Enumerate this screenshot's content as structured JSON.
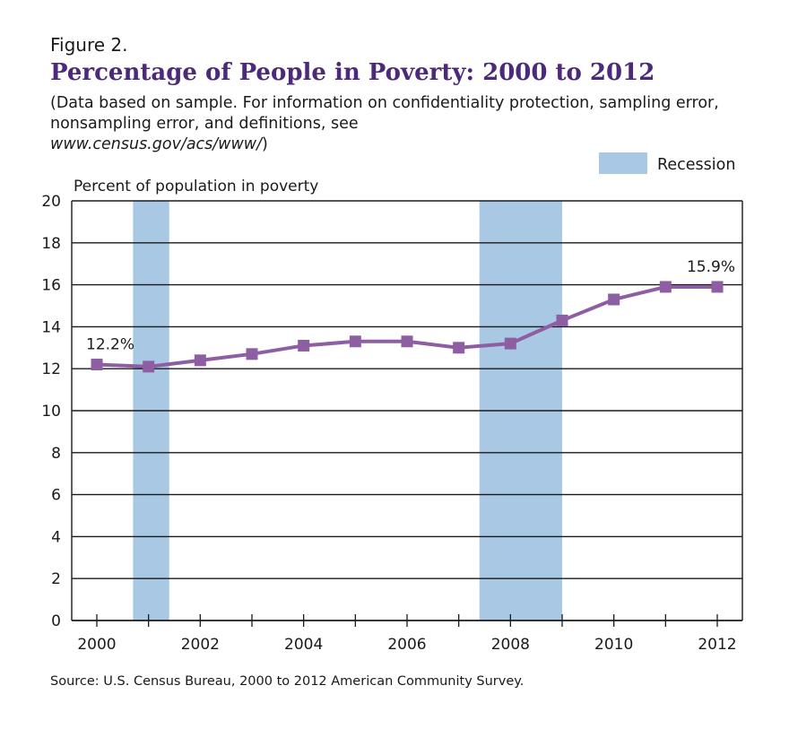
{
  "figure_label": "Figure 2.",
  "title": "Percentage of People in Poverty: 2000 to 2012",
  "subtitle_text": "(Data based on sample. For information on confidentiality protection, sampling error, nonsampling error, and definitions, see",
  "subtitle_url": "www.census.gov/acs/www/",
  "subtitle_close": ")",
  "source": "Source: U.S. Census Bureau, 2000 to 2012 American Community Survey.",
  "colors": {
    "line": "#8e5ea2",
    "recession": "#a8c8e4",
    "title": "#4b2a7b",
    "grid": "#1a1a1a"
  },
  "chart_data": {
    "type": "line",
    "ylabel": "Percent of population in poverty",
    "xlim": [
      2000,
      2012
    ],
    "ylim": [
      0,
      20
    ],
    "x_ticks": [
      2000,
      2002,
      2004,
      2006,
      2008,
      2010,
      2012
    ],
    "y_ticks": [
      0,
      2,
      4,
      6,
      8,
      10,
      12,
      14,
      16,
      18,
      20
    ],
    "grid": true,
    "series": [
      {
        "x": [
          2000,
          2001,
          2002,
          2003,
          2004,
          2005,
          2006,
          2007,
          2008,
          2009,
          2010,
          2011,
          2012
        ],
        "values": [
          12.2,
          12.1,
          12.4,
          12.7,
          13.1,
          13.3,
          13.3,
          13.0,
          13.2,
          14.3,
          15.3,
          15.9,
          15.9
        ]
      }
    ],
    "recessions": [
      {
        "start": 2000.7,
        "end": 2001.4
      },
      {
        "start": 2007.4,
        "end": 2009.0
      }
    ],
    "legend": {
      "label": "Recession",
      "position": "top-right"
    },
    "annotations": [
      {
        "x": 2000,
        "y": 12.2,
        "text": "12.2%"
      },
      {
        "x": 2012,
        "y": 15.9,
        "text": "15.9%"
      }
    ]
  }
}
